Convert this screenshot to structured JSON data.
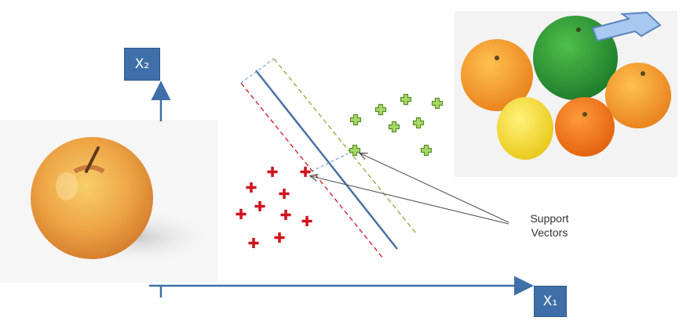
{
  "axes": {
    "x1_label": "X₁",
    "x2_label": "X₂"
  },
  "annotation": {
    "support_vectors": [
      "Support",
      "Vectors"
    ]
  },
  "colors": {
    "axis_blue": "#3f6fa8",
    "class_red": "#d0141e",
    "class_green": "#7ab83a",
    "hyperplane": "#4a6fa5"
  },
  "icons": {
    "apple": "apple-photo",
    "citrus": "citrus-fruit-photo",
    "pointer": "highlight-arrow-icon"
  }
}
